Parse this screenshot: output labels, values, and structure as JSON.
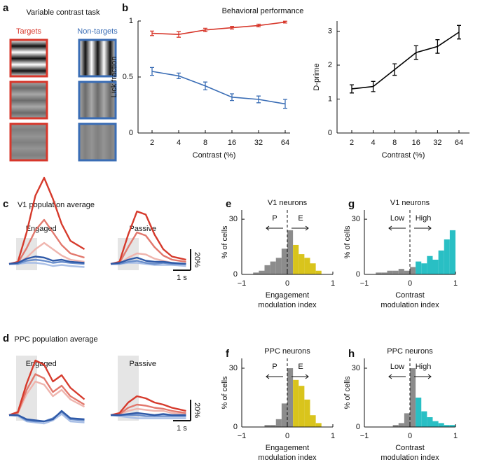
{
  "panel_labels": [
    "a",
    "b",
    "c",
    "d",
    "e",
    "f",
    "g",
    "h"
  ],
  "task": {
    "title": "Variable contrast task",
    "targets": "Targets",
    "nontargets": "Non-targets"
  },
  "headings": {
    "b": "Behavioral performance",
    "c": "V1 population average",
    "d": "PPC population average"
  },
  "chart_data": [
    {
      "type": "line",
      "ylabel": "Lick fraction",
      "xlabel": "Contrast (%)",
      "categories": [
        "2",
        "4",
        "8",
        "16",
        "32",
        "64"
      ],
      "ylim": [
        0,
        1
      ],
      "yticks": [
        0,
        0.5,
        1
      ],
      "series": [
        {
          "color": "#d7372b",
          "values": [
            0.89,
            0.88,
            0.92,
            0.94,
            0.96,
            0.99
          ],
          "errors": [
            0.02,
            0.025,
            0.015,
            0.012,
            0.012,
            0.008
          ]
        },
        {
          "color": "#3a6db5",
          "values": [
            0.55,
            0.51,
            0.42,
            0.32,
            0.3,
            0.26
          ],
          "errors": [
            0.035,
            0.025,
            0.035,
            0.03,
            0.03,
            0.04
          ]
        }
      ]
    },
    {
      "type": "line",
      "ylabel": "D-prime",
      "xlabel": "Contrast (%)",
      "categories": [
        "2",
        "4",
        "8",
        "16",
        "32",
        "64"
      ],
      "ylim": [
        0,
        3.3
      ],
      "yticks": [
        0,
        1,
        2,
        3
      ],
      "series": [
        {
          "color": "#000000",
          "values": [
            1.3,
            1.37,
            1.87,
            2.37,
            2.55,
            2.97
          ],
          "errors": [
            0.12,
            0.15,
            0.17,
            0.2,
            0.2,
            0.2
          ]
        }
      ]
    },
    {
      "type": "traces",
      "title": "Engaged",
      "stimulus": [
        0.4,
        1.6
      ],
      "x": [
        0,
        0.5,
        1,
        1.5,
        2,
        2.5,
        3,
        3.5,
        4.3
      ],
      "series": [
        {
          "color": "#efb5ae",
          "values": [
            0,
            1,
            6,
            14,
            20,
            14,
            8,
            4,
            2
          ]
        },
        {
          "color": "#e2786d",
          "values": [
            0,
            1,
            15,
            32,
            42,
            30,
            18,
            10,
            6
          ]
        },
        {
          "color": "#d63a2c",
          "values": [
            0,
            2,
            30,
            65,
            82,
            62,
            38,
            22,
            14
          ]
        },
        {
          "color": "#a9bfe6",
          "values": [
            0,
            0,
            1,
            1,
            0,
            -2,
            -1,
            -2,
            -3
          ]
        },
        {
          "color": "#6b8fcc",
          "values": [
            0,
            0,
            3,
            4,
            3,
            1,
            2,
            1,
            0
          ]
        },
        {
          "color": "#2f5aa8",
          "values": [
            0,
            1,
            5,
            7,
            6,
            3,
            4,
            2,
            1
          ]
        }
      ]
    },
    {
      "type": "traces",
      "title": "Passive",
      "stimulus": [
        0.4,
        1.6
      ],
      "x": [
        0,
        0.5,
        1,
        1.5,
        2,
        2.5,
        3,
        3.5,
        4.3
      ],
      "scalebar": {
        "y": 20,
        "y_label": "20%",
        "x": 1,
        "x_label": "1 s"
      },
      "series": [
        {
          "color": "#efb5ae",
          "values": [
            0,
            0,
            6,
            10,
            9,
            5,
            3,
            1,
            0
          ]
        },
        {
          "color": "#e2786d",
          "values": [
            0,
            1,
            16,
            30,
            27,
            16,
            8,
            4,
            2
          ]
        },
        {
          "color": "#d63a2c",
          "values": [
            0,
            2,
            28,
            50,
            47,
            28,
            14,
            7,
            4
          ]
        },
        {
          "color": "#a9bfe6",
          "values": [
            0,
            0,
            1,
            1,
            0,
            -1,
            -1,
            -1,
            -2
          ]
        },
        {
          "color": "#6b8fcc",
          "values": [
            0,
            0,
            2,
            3,
            1,
            0,
            1,
            0,
            0
          ]
        },
        {
          "color": "#2f5aa8",
          "values": [
            0,
            1,
            4,
            6,
            3,
            2,
            2,
            1,
            0
          ]
        }
      ]
    },
    {
      "type": "traces",
      "title": "Engaged",
      "stimulus": [
        0.4,
        1.6
      ],
      "x": [
        0,
        0.5,
        1,
        1.5,
        2,
        2.5,
        3,
        3.5,
        4.3
      ],
      "series": [
        {
          "color": "#efb5ae",
          "values": [
            0,
            2,
            20,
            32,
            29,
            18,
            24,
            15,
            8
          ]
        },
        {
          "color": "#e2786d",
          "values": [
            0,
            2,
            24,
            39,
            35,
            22,
            28,
            18,
            10
          ]
        },
        {
          "color": "#d63a2c",
          "values": [
            0,
            3,
            30,
            52,
            48,
            32,
            38,
            26,
            15
          ]
        },
        {
          "color": "#a9bfe6",
          "values": [
            0,
            -1,
            -6,
            -7,
            -8,
            -5,
            1,
            -6,
            -7
          ]
        },
        {
          "color": "#6b8fcc",
          "values": [
            0,
            0,
            -5,
            -6,
            -6,
            -3,
            3,
            -4,
            -5
          ]
        },
        {
          "color": "#2f5aa8",
          "values": [
            0,
            0,
            -4,
            -5,
            -6,
            -4,
            4,
            -3,
            -4
          ]
        }
      ]
    },
    {
      "type": "traces",
      "title": "Passive",
      "stimulus": [
        0.4,
        1.6
      ],
      "x": [
        0,
        0.5,
        1,
        1.5,
        2,
        2.5,
        3,
        3.5,
        4.3
      ],
      "scalebar": {
        "y": 20,
        "y_label": "20%",
        "x": 1,
        "x_label": "1 s"
      },
      "series": [
        {
          "color": "#efb5ae",
          "values": [
            0,
            1,
            4,
            6,
            5,
            4,
            4,
            2,
            1
          ]
        },
        {
          "color": "#e2786d",
          "values": [
            0,
            1,
            7,
            10,
            9,
            7,
            6,
            4,
            2
          ]
        },
        {
          "color": "#d63a2c",
          "values": [
            0,
            2,
            12,
            18,
            16,
            12,
            10,
            7,
            4
          ]
        },
        {
          "color": "#a9bfe6",
          "values": [
            0,
            -1,
            -2,
            -3,
            -3,
            -3,
            -3,
            -3,
            -3
          ]
        },
        {
          "color": "#6b8fcc",
          "values": [
            0,
            0,
            0,
            0,
            -1,
            -1,
            -1,
            -1,
            -1
          ]
        },
        {
          "color": "#2f5aa8",
          "values": [
            0,
            0,
            1,
            2,
            1,
            0,
            1,
            0,
            0
          ]
        }
      ]
    },
    {
      "type": "histogram",
      "title": "V1 neurons",
      "ylabel": "% of cells",
      "xlabel": [
        "Engagement",
        "modulation index"
      ],
      "annotations": [
        "P",
        "E"
      ],
      "vline": 0,
      "bins": [
        -1,
        -0.875,
        -0.75,
        -0.625,
        -0.5,
        -0.375,
        -0.25,
        -0.125,
        0,
        0.125,
        0.25,
        0.375,
        0.5,
        0.625,
        0.75,
        0.875,
        1
      ],
      "xlim": [
        -1,
        1
      ],
      "xticks": [
        {
          "value": -1,
          "label": "−1"
        },
        0,
        1
      ],
      "ylim": [
        0,
        35
      ],
      "yticks": [
        0,
        30
      ],
      "series": [
        {
          "color": "#8c8c8c",
          "values": [
            0,
            0,
            1,
            2,
            5,
            7,
            9,
            14,
            24,
            0,
            0,
            0,
            0,
            0,
            0,
            0
          ]
        },
        {
          "color": "#d9c41c",
          "values": [
            0,
            0,
            0,
            0,
            0,
            0,
            0,
            0,
            0,
            16,
            11,
            9,
            6,
            2,
            0,
            0
          ]
        }
      ]
    },
    {
      "type": "histogram",
      "title": "PPC neurons",
      "ylabel": "% of cells",
      "xlabel": [
        "Engagement",
        "modulation index"
      ],
      "annotations": [
        "P",
        "E"
      ],
      "vline": 0,
      "bins": [
        -1,
        -0.875,
        -0.75,
        -0.625,
        -0.5,
        -0.375,
        -0.25,
        -0.125,
        0,
        0.125,
        0.25,
        0.375,
        0.5,
        0.625,
        0.75,
        0.875,
        1
      ],
      "xlim": [
        -1,
        1
      ],
      "xticks": [
        {
          "value": -1,
          "label": "−1"
        },
        0,
        1
      ],
      "ylim": [
        0,
        35
      ],
      "yticks": [
        0,
        30
      ],
      "series": [
        {
          "color": "#8c8c8c",
          "values": [
            0,
            0,
            0,
            0,
            1,
            1,
            4,
            12,
            30,
            0,
            0,
            0,
            0,
            0,
            0,
            0
          ]
        },
        {
          "color": "#d9c41c",
          "values": [
            0,
            0,
            0,
            0,
            0,
            0,
            0,
            0,
            0,
            24,
            21,
            14,
            6,
            2,
            0,
            0
          ]
        }
      ]
    },
    {
      "type": "histogram",
      "title": "V1 neurons",
      "ylabel": "% of cells",
      "xlabel": [
        "Contrast",
        "modulation index"
      ],
      "annotations": [
        "Low",
        "High"
      ],
      "vline": 0,
      "bins": [
        -1,
        -0.875,
        -0.75,
        -0.625,
        -0.5,
        -0.375,
        -0.25,
        -0.125,
        0,
        0.125,
        0.25,
        0.375,
        0.5,
        0.625,
        0.75,
        0.875,
        1
      ],
      "xlim": [
        -1,
        1
      ],
      "xticks": [
        {
          "value": -1,
          "label": "−1"
        },
        0,
        1
      ],
      "ylim": [
        0,
        35
      ],
      "yticks": [
        0,
        30
      ],
      "series": [
        {
          "color": "#8c8c8c",
          "values": [
            0,
            0,
            1,
            1,
            2,
            2,
            3,
            2,
            4,
            0,
            0,
            0,
            0,
            0,
            0,
            0
          ]
        },
        {
          "color": "#29bfc4",
          "values": [
            0,
            0,
            0,
            0,
            0,
            0,
            0,
            0,
            0,
            7,
            6,
            10,
            8,
            13,
            19,
            24
          ]
        }
      ]
    },
    {
      "type": "histogram",
      "title": "PPC neurons",
      "ylabel": "% of cells",
      "xlabel": [
        "Contrast",
        "modulation index"
      ],
      "annotations": [
        "Low",
        "High"
      ],
      "vline": 0,
      "bins": [
        -1,
        -0.875,
        -0.75,
        -0.625,
        -0.5,
        -0.375,
        -0.25,
        -0.125,
        0,
        0.125,
        0.25,
        0.375,
        0.5,
        0.625,
        0.75,
        0.875,
        1
      ],
      "xlim": [
        -1,
        1
      ],
      "xticks": [
        {
          "value": -1,
          "label": "−1"
        },
        0,
        1
      ],
      "ylim": [
        0,
        35
      ],
      "yticks": [
        0,
        30
      ],
      "series": [
        {
          "color": "#8c8c8c",
          "values": [
            0,
            0,
            0,
            0,
            0,
            1,
            2,
            7,
            30,
            0,
            0,
            0,
            0,
            0,
            0,
            0
          ]
        },
        {
          "color": "#29bfc4",
          "values": [
            0,
            0,
            0,
            0,
            0,
            0,
            0,
            0,
            0,
            15,
            8,
            5,
            3,
            2,
            1,
            1
          ]
        }
      ]
    }
  ]
}
